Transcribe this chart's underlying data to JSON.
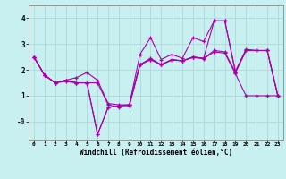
{
  "xlabel": "Windchill (Refroidissement éolien,°C)",
  "background_color": "#c8f0f0",
  "line_color": "#aa00aa",
  "grid_color": "#b0d8d8",
  "ylim": [
    -0.7,
    4.5
  ],
  "xlim": [
    -0.5,
    23.5
  ],
  "yticks": [
    0,
    1,
    2,
    3,
    4
  ],
  "ytick_labels": [
    "-0",
    "1",
    "2",
    "3",
    "4"
  ],
  "xticks": [
    0,
    1,
    2,
    3,
    4,
    5,
    6,
    7,
    8,
    9,
    10,
    11,
    12,
    13,
    14,
    15,
    16,
    17,
    18,
    19,
    20,
    21,
    22,
    23
  ],
  "series": [
    [
      2.5,
      1.8,
      1.5,
      1.6,
      1.7,
      1.9,
      1.6,
      0.7,
      0.65,
      0.65,
      2.6,
      3.25,
      2.4,
      2.6,
      2.45,
      3.25,
      3.1,
      3.9,
      3.9,
      1.95,
      2.8,
      2.75,
      2.75,
      1.0
    ],
    [
      2.5,
      1.8,
      1.5,
      1.6,
      1.5,
      1.5,
      1.5,
      0.65,
      0.55,
      0.6,
      2.2,
      2.45,
      2.2,
      2.4,
      2.35,
      2.5,
      2.45,
      2.75,
      2.7,
      1.9,
      2.75,
      2.75,
      2.75,
      1.0
    ],
    [
      2.5,
      1.8,
      1.5,
      1.6,
      1.5,
      1.5,
      -0.5,
      0.55,
      0.6,
      0.65,
      2.2,
      2.4,
      2.2,
      2.4,
      2.35,
      2.5,
      2.45,
      3.9,
      3.9,
      1.9,
      2.75,
      2.75,
      2.75,
      1.0
    ],
    [
      2.5,
      1.8,
      1.5,
      1.55,
      1.5,
      1.5,
      -0.5,
      0.55,
      0.6,
      0.65,
      2.2,
      2.4,
      2.2,
      2.38,
      2.35,
      2.48,
      2.43,
      2.7,
      2.65,
      1.85,
      1.0,
      1.0,
      1.0,
      1.0
    ]
  ]
}
